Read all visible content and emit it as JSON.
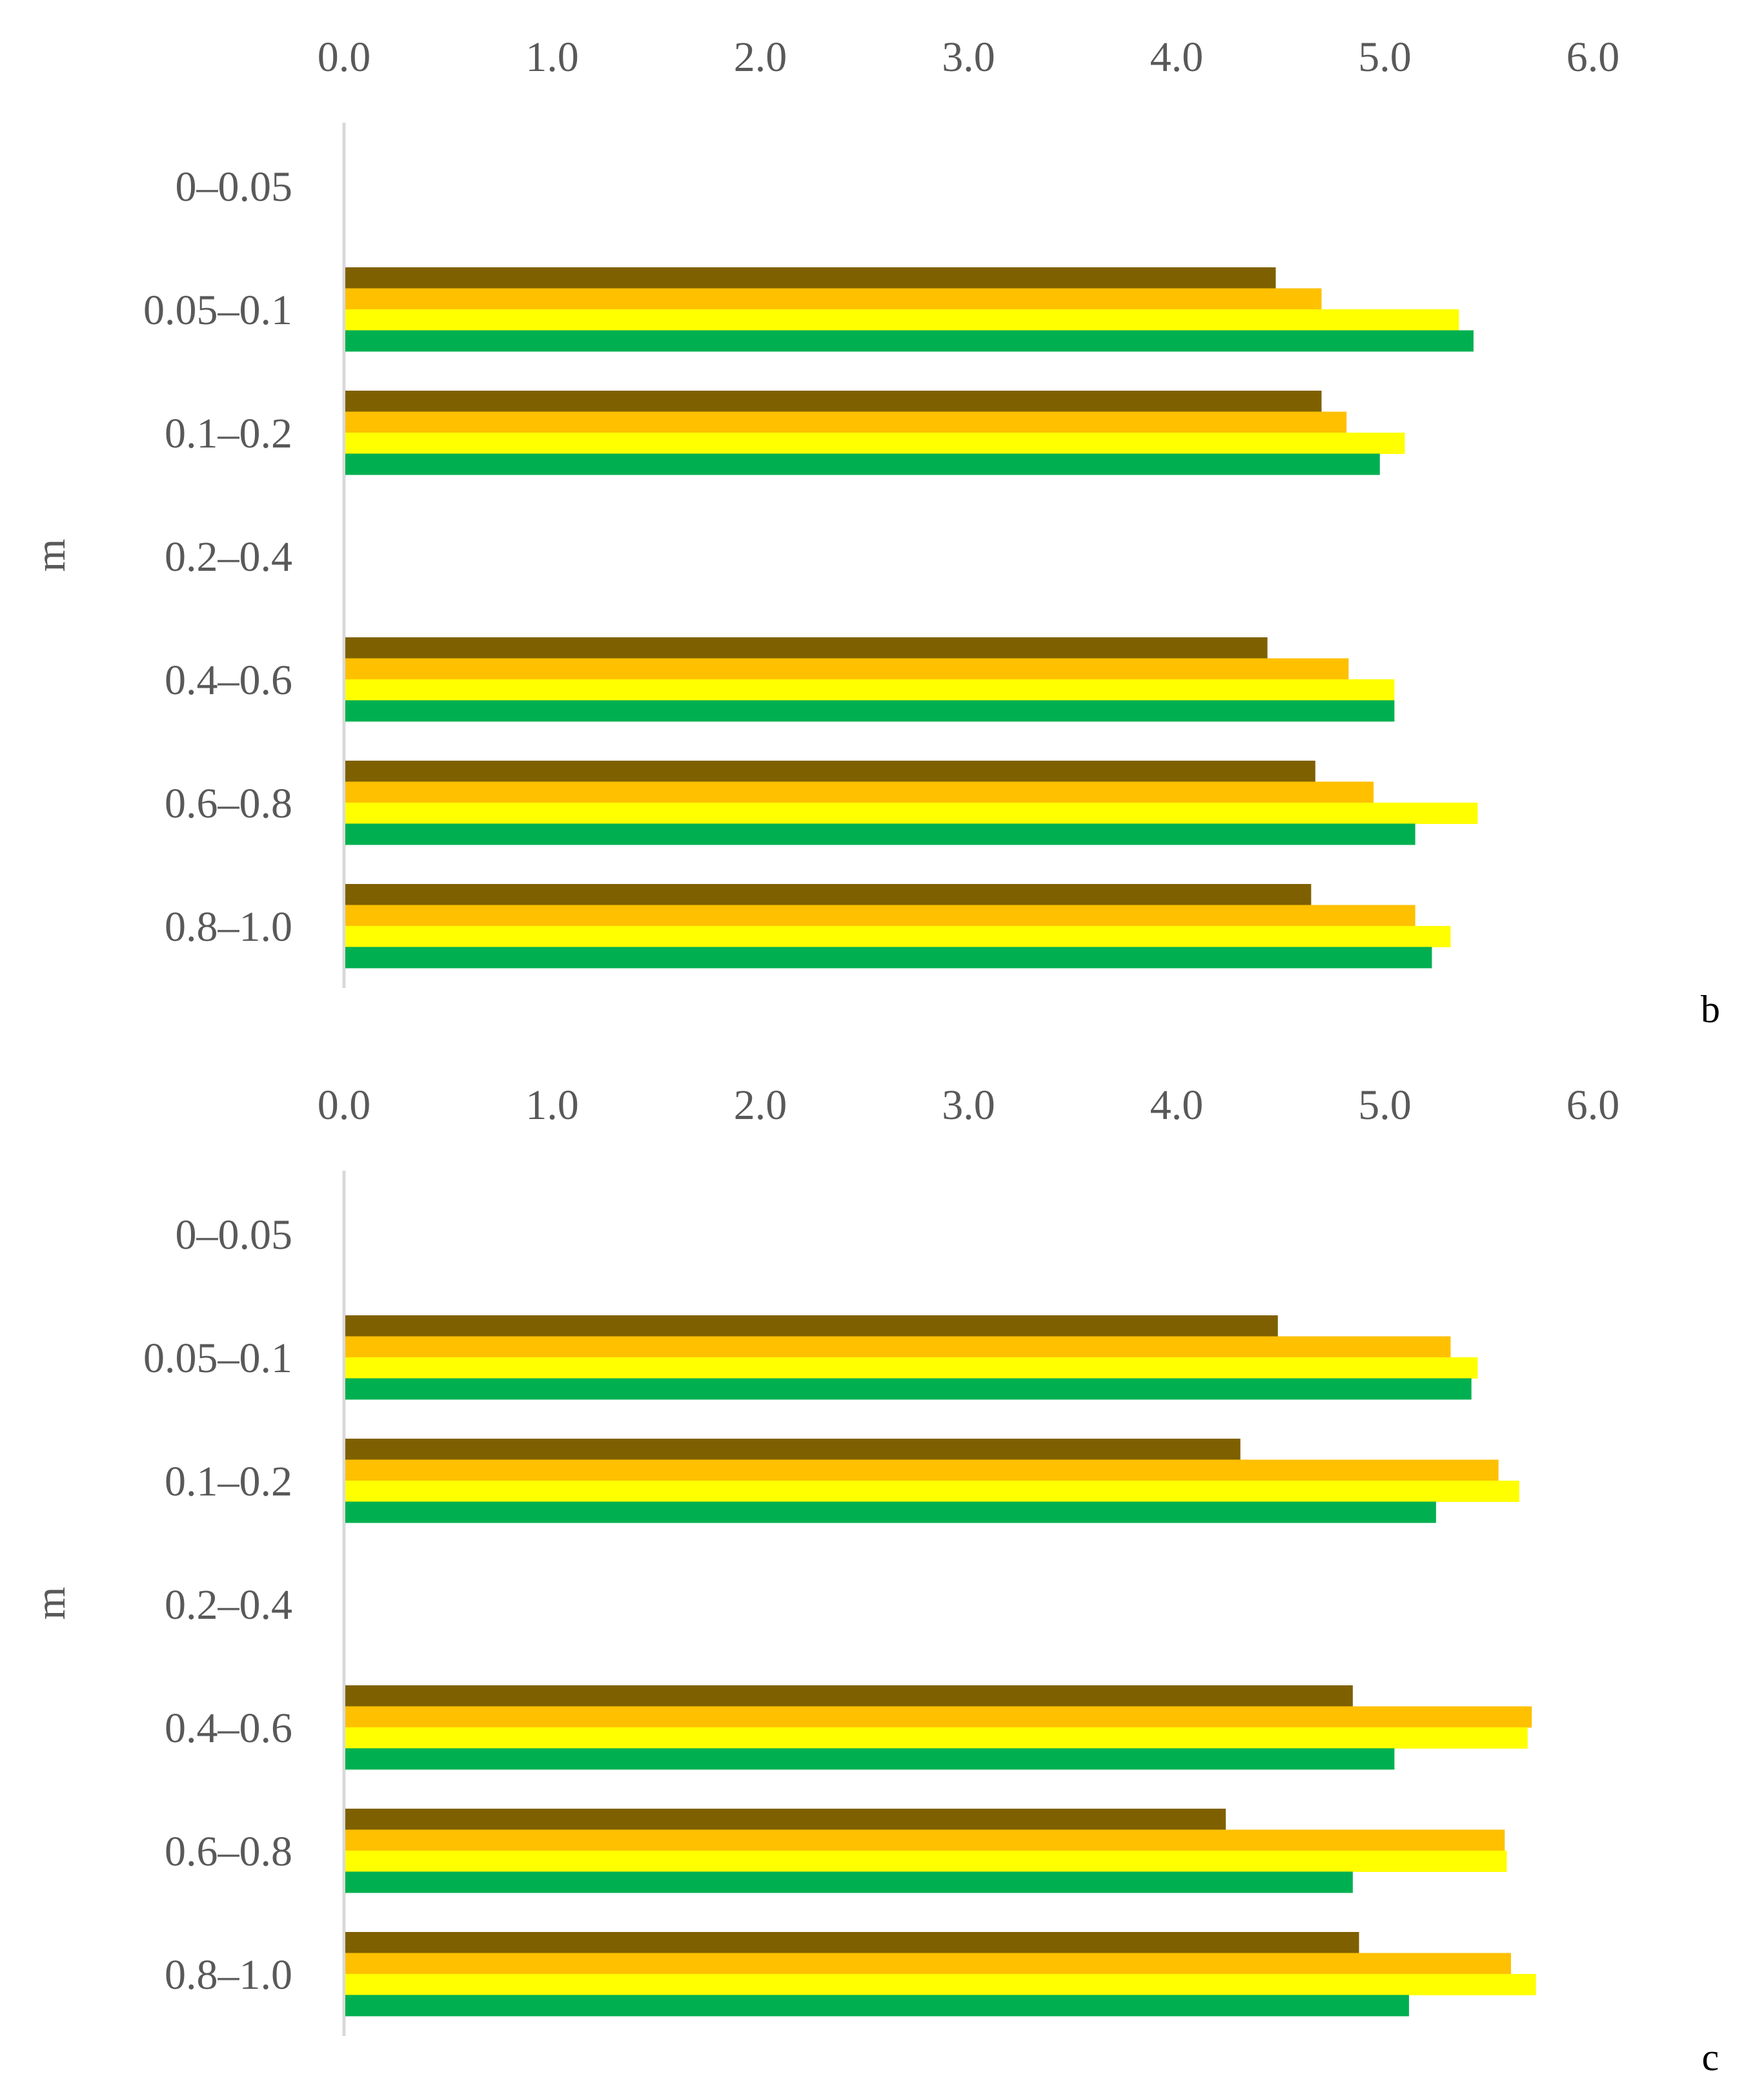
{
  "chart_data": [
    {
      "type": "bar",
      "orientation": "horizontal",
      "panel": "b",
      "ylabel": "m",
      "xlim": [
        0,
        6
      ],
      "xticks": [
        "0.0",
        "1.0",
        "2.0",
        "3.0",
        "4.0",
        "5.0",
        "6.0"
      ],
      "x_axis_position": "top",
      "grid": false,
      "legend": "none",
      "categories": [
        "0–0.05",
        "0.05–0.1",
        "0.1–0.2",
        "0.2–0.4",
        "0.4–0.6",
        "0.6–0.8",
        "0.8–1.0"
      ],
      "series": [
        {
          "color": "#7f6000",
          "values": [
            null,
            4.47,
            4.69,
            null,
            4.43,
            4.66,
            4.64
          ]
        },
        {
          "color": "#ffc000",
          "values": [
            null,
            4.69,
            4.81,
            null,
            4.82,
            4.94,
            5.14
          ]
        },
        {
          "color": "#ffff00",
          "values": [
            null,
            5.35,
            5.09,
            null,
            5.04,
            5.44,
            5.31
          ]
        },
        {
          "color": "#00b050",
          "values": [
            null,
            5.42,
            4.97,
            null,
            5.04,
            5.14,
            5.22
          ]
        }
      ]
    },
    {
      "type": "bar",
      "orientation": "horizontal",
      "panel": "c",
      "ylabel": "m",
      "xlim": [
        0,
        6
      ],
      "xticks": [
        "0.0",
        "1.0",
        "2.0",
        "3.0",
        "4.0",
        "5.0",
        "6.0"
      ],
      "x_axis_position": "top",
      "grid": false,
      "legend": "none",
      "categories": [
        "0–0.05",
        "0.05–0.1",
        "0.1–0.2",
        "0.2–0.4",
        "0.4–0.6",
        "0.6–0.8",
        "0.8–1.0"
      ],
      "series": [
        {
          "color": "#7f6000",
          "values": [
            null,
            4.48,
            4.3,
            null,
            4.84,
            4.23,
            4.87
          ]
        },
        {
          "color": "#ffc000",
          "values": [
            null,
            5.31,
            5.54,
            null,
            5.7,
            5.57,
            5.6
          ]
        },
        {
          "color": "#ffff00",
          "values": [
            null,
            5.44,
            5.64,
            null,
            5.68,
            5.58,
            5.72
          ]
        },
        {
          "color": "#00b050",
          "values": [
            null,
            5.41,
            5.24,
            null,
            5.04,
            4.84,
            5.11
          ]
        }
      ]
    }
  ]
}
